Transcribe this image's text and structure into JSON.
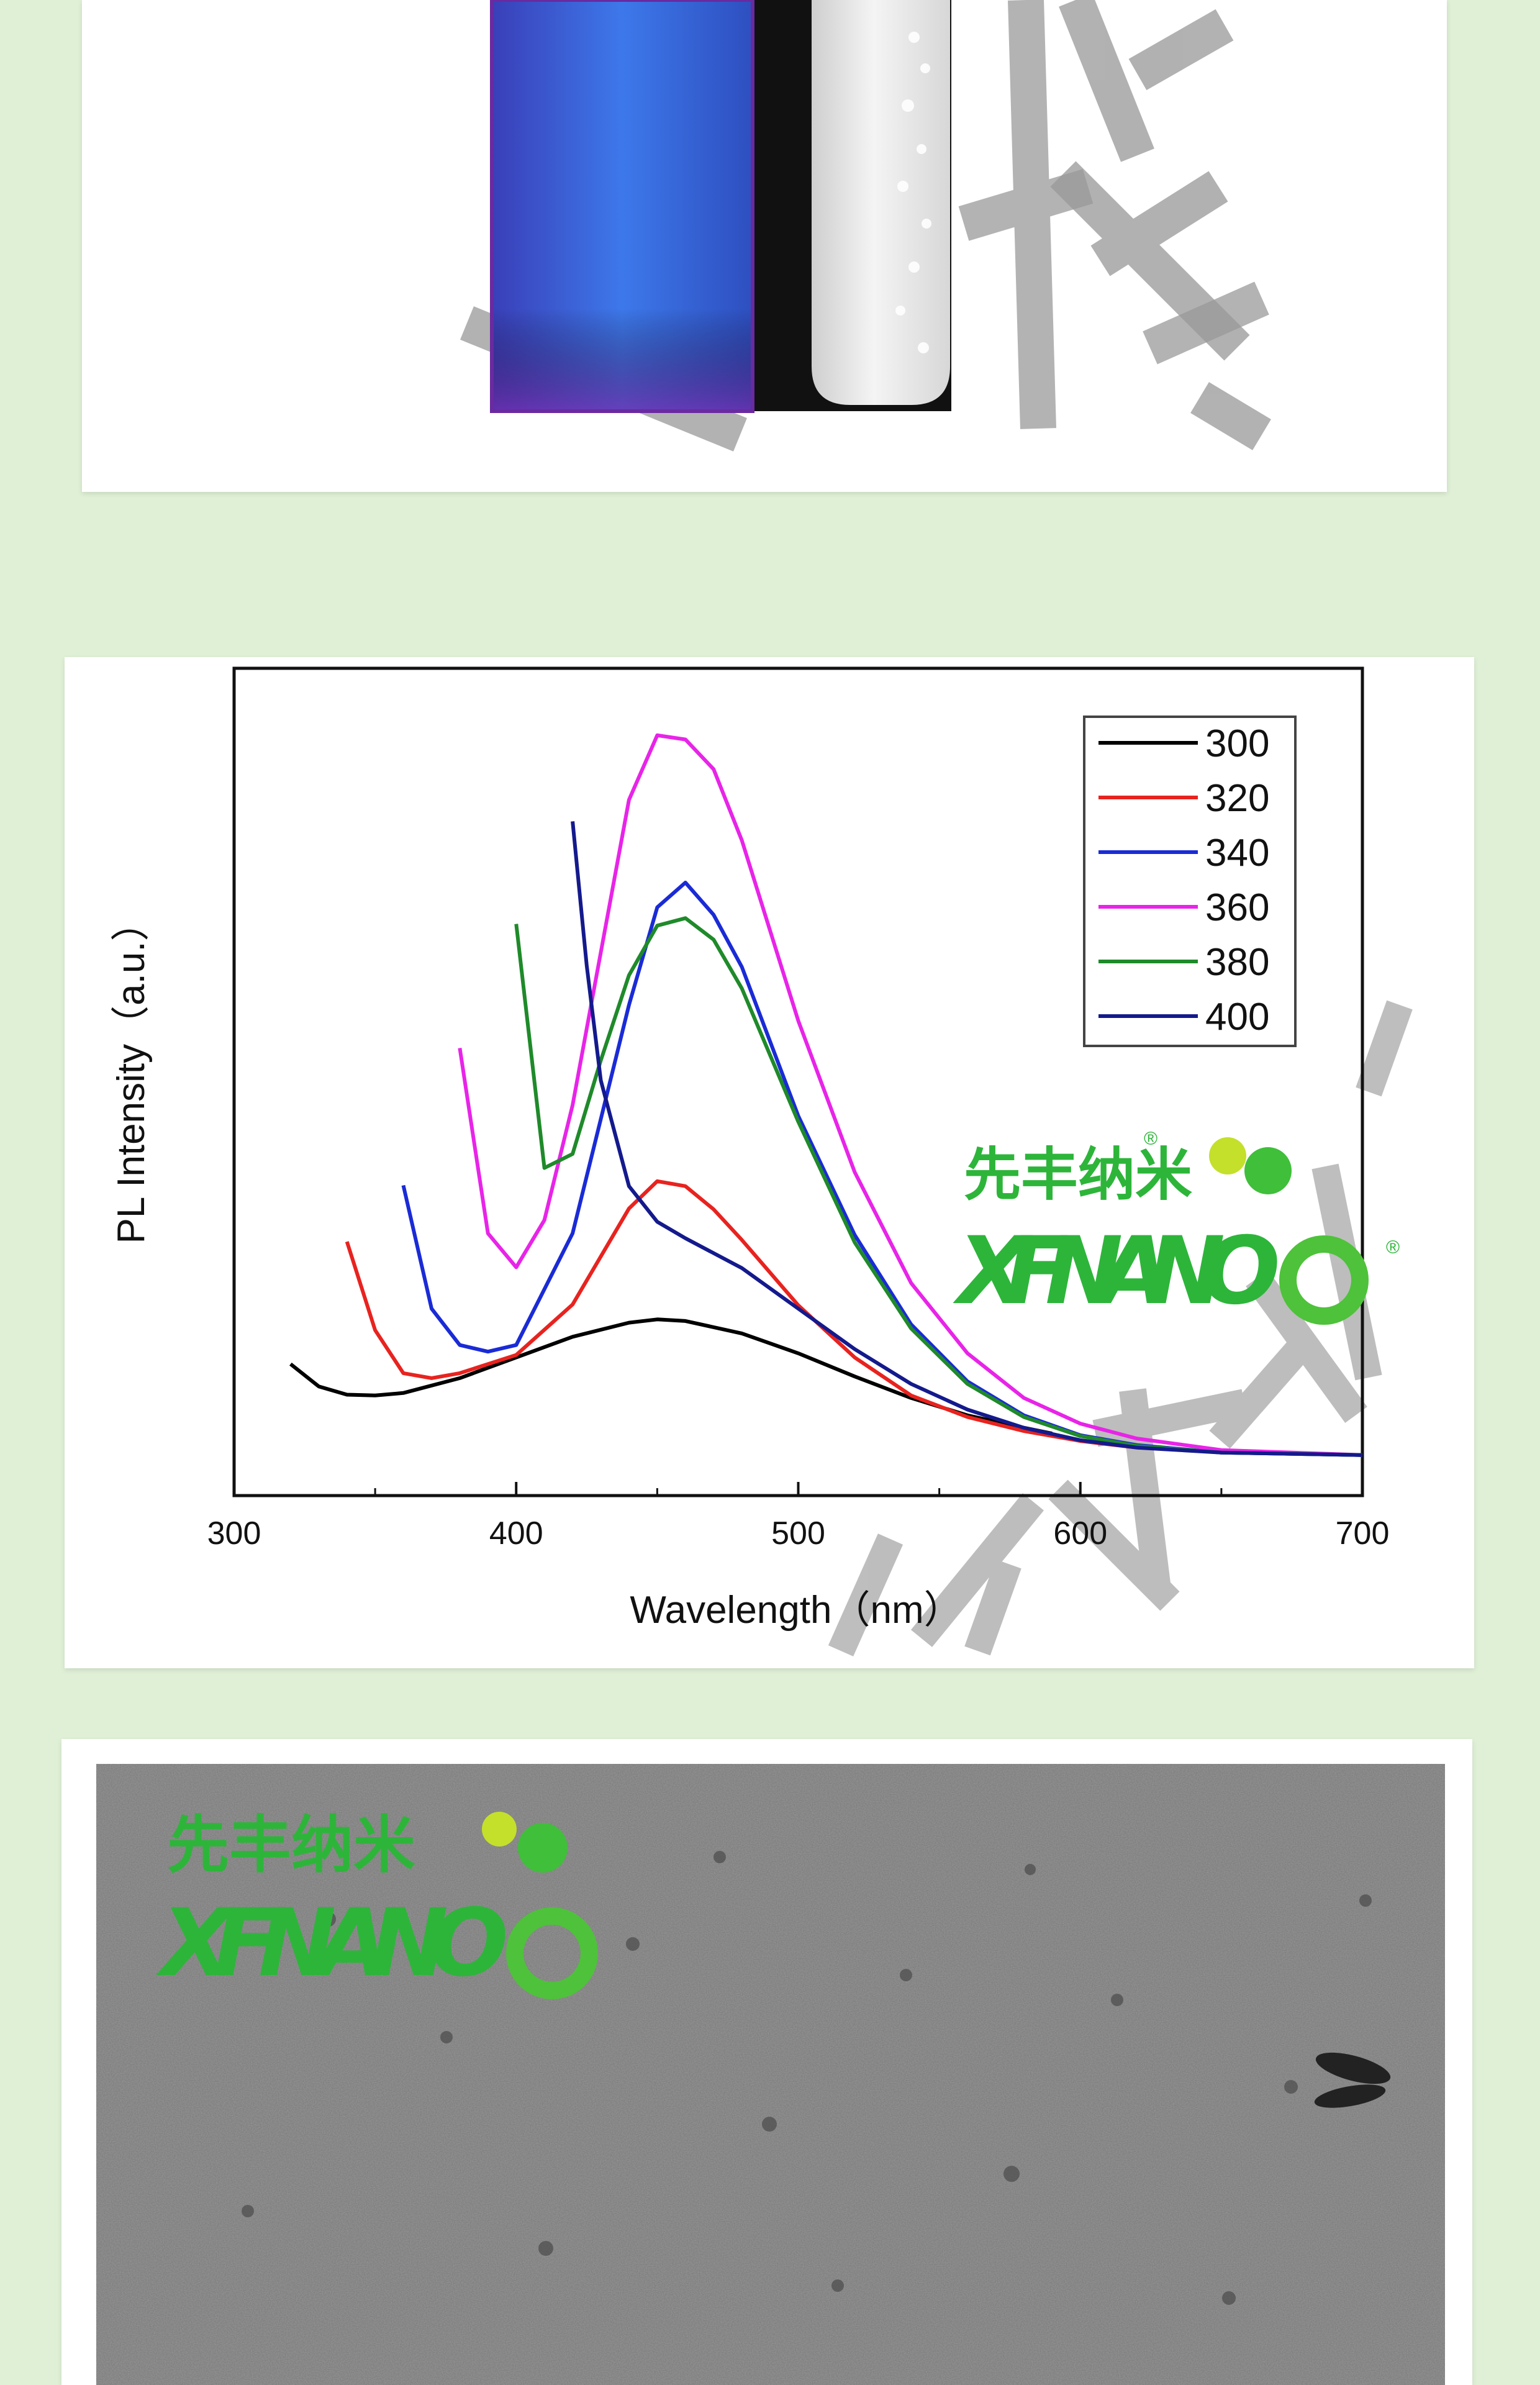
{
  "photo_panel": {
    "vial_left_glow": "#3f6fe0",
    "vial_right_fill": "#e6e6e6",
    "watermark_color": "#9a9a9a"
  },
  "logo": {
    "chinese": "先丰纳米",
    "english": "XFNANO",
    "registered": "®",
    "color": "#2db53a",
    "dot_color": "#c4e02a"
  },
  "tem_panel": {
    "background": "#7f7f7f"
  },
  "chart_data": {
    "type": "line",
    "xlabel": "Wavelength（nm）",
    "ylabel": "PL Intensity（a.u.）",
    "xlim": [
      300,
      700
    ],
    "ylim": [
      0,
      1
    ],
    "x_ticks": [
      300,
      400,
      500,
      600,
      700
    ],
    "legend_position": "top-right",
    "grid": false,
    "series": [
      {
        "name": "300",
        "color": "#000000",
        "x": [
          320,
          330,
          340,
          350,
          360,
          380,
          400,
          420,
          440,
          450,
          460,
          480,
          500,
          520,
          540,
          560,
          580,
          590
        ],
        "y": [
          0.159,
          0.132,
          0.122,
          0.121,
          0.124,
          0.142,
          0.167,
          0.192,
          0.209,
          0.213,
          0.211,
          0.196,
          0.172,
          0.144,
          0.118,
          0.097,
          0.082,
          0.075
        ]
      },
      {
        "name": "320",
        "color": "#e8231f",
        "x": [
          340,
          350,
          360,
          370,
          380,
          400,
          420,
          440,
          450,
          460,
          470,
          480,
          500,
          520,
          540,
          560,
          580,
          600,
          620
        ],
        "y": [
          0.307,
          0.2,
          0.148,
          0.142,
          0.148,
          0.17,
          0.231,
          0.347,
          0.38,
          0.374,
          0.346,
          0.309,
          0.23,
          0.167,
          0.121,
          0.095,
          0.078,
          0.066,
          0.058
        ]
      },
      {
        "name": "340",
        "color": "#1a2bd6",
        "x": [
          360,
          370,
          380,
          390,
          400,
          420,
          440,
          450,
          460,
          470,
          480,
          500,
          520,
          540,
          560,
          580,
          600,
          620,
          650,
          700
        ],
        "y": [
          0.375,
          0.226,
          0.182,
          0.174,
          0.182,
          0.317,
          0.593,
          0.711,
          0.741,
          0.702,
          0.639,
          0.459,
          0.315,
          0.207,
          0.138,
          0.097,
          0.073,
          0.061,
          0.052,
          0.049
        ]
      },
      {
        "name": "360",
        "color": "#e824e8",
        "x": [
          380,
          390,
          400,
          410,
          420,
          440,
          450,
          460,
          470,
          480,
          500,
          520,
          540,
          560,
          580,
          600,
          620,
          650,
          700
        ],
        "y": [
          0.541,
          0.317,
          0.276,
          0.333,
          0.472,
          0.841,
          0.919,
          0.914,
          0.878,
          0.792,
          0.574,
          0.391,
          0.257,
          0.172,
          0.118,
          0.087,
          0.069,
          0.055,
          0.049
        ]
      },
      {
        "name": "380",
        "color": "#1f8a2a",
        "x": [
          400,
          410,
          420,
          430,
          440,
          450,
          460,
          470,
          480,
          500,
          520,
          540,
          560,
          580,
          600,
          620,
          650,
          700
        ],
        "y": [
          0.691,
          0.396,
          0.413,
          0.526,
          0.629,
          0.689,
          0.698,
          0.672,
          0.613,
          0.452,
          0.306,
          0.202,
          0.135,
          0.095,
          0.072,
          0.06,
          0.052,
          0.049
        ]
      },
      {
        "name": "400",
        "color": "#141a8c",
        "x": [
          420,
          425,
          430,
          440,
          450,
          460,
          480,
          500,
          520,
          540,
          560,
          580,
          600,
          620,
          650,
          700
        ],
        "y": [
          0.815,
          0.641,
          0.502,
          0.374,
          0.331,
          0.311,
          0.275,
          0.226,
          0.177,
          0.135,
          0.104,
          0.082,
          0.067,
          0.058,
          0.052,
          0.049
        ]
      }
    ]
  }
}
